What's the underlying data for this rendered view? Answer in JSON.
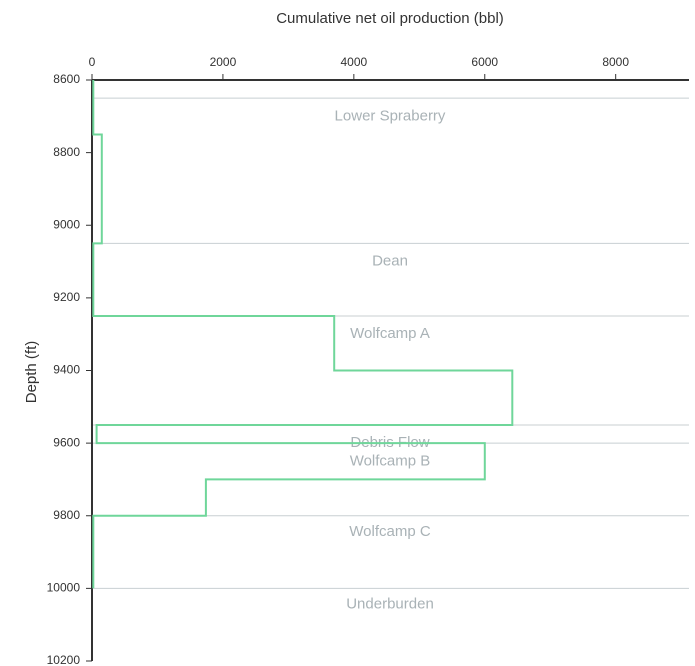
{
  "chart_data": {
    "type": "line",
    "title": "",
    "xlabel": "Cumulative net oil production (bbl)",
    "ylabel": "Depth (ft)",
    "x_axis_position": "top",
    "y_reversed": true,
    "xlim": [
      0,
      9120
    ],
    "ylim": [
      8600,
      10200
    ],
    "x_ticks": [
      0,
      2000,
      4000,
      6000,
      8000
    ],
    "x_tick_labels": [
      "0",
      "2000",
      "4000",
      "6000",
      "8000"
    ],
    "y_ticks": [
      8600,
      8800,
      9000,
      9200,
      9400,
      9600,
      9800,
      10000,
      10200
    ],
    "y_tick_labels": [
      "8600",
      "8800",
      "9000",
      "9200",
      "9400",
      "9600",
      "9800",
      "10000",
      "10200"
    ],
    "series_color": "#6fd69a",
    "boundary_color": "#c8cfd2",
    "series": [
      {
        "name": "",
        "points": [
          [
            20,
            8600
          ],
          [
            20,
            8750
          ],
          [
            150,
            8750
          ],
          [
            150,
            9050
          ],
          [
            20,
            9050
          ],
          [
            20,
            9250
          ],
          [
            3700,
            9250
          ],
          [
            3700,
            9400
          ],
          [
            6420,
            9400
          ],
          [
            6420,
            9550
          ],
          [
            70,
            9550
          ],
          [
            70,
            9600
          ],
          [
            6000,
            9600
          ],
          [
            6000,
            9700
          ],
          [
            1740,
            9700
          ],
          [
            1740,
            9800
          ],
          [
            20,
            9800
          ],
          [
            20,
            10000
          ]
        ]
      }
    ],
    "formation_boundaries": [
      8650,
      9050,
      9250,
      9550,
      9600,
      9800,
      10000
    ],
    "formations": [
      {
        "name": "Lower Spraberry",
        "label_depth": 8700
      },
      {
        "name": "Dean",
        "label_depth": 9100
      },
      {
        "name": "Wolfcamp A",
        "label_depth": 9300
      },
      {
        "name": "Debris Flow",
        "label_depth": 9600
      },
      {
        "name": "Wolfcamp B",
        "label_depth": 9650
      },
      {
        "name": "Wolfcamp C",
        "label_depth": 9845
      },
      {
        "name": "Underburden",
        "label_depth": 10045
      }
    ]
  }
}
